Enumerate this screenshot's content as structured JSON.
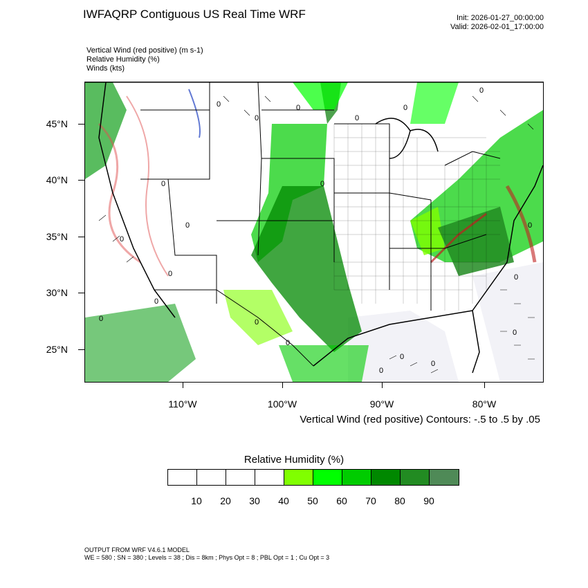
{
  "header": {
    "title": "IWFAQRP Contiguous US Real Time WRF",
    "init": "Init: 2026-01-27_00:00:00",
    "valid": "Valid: 2026-02-01_17:00:00"
  },
  "variables": [
    "Vertical Wind (red positive)   (m s-1)",
    "Relative Humidity   (%)",
    "Winds   (kts)"
  ],
  "axes": {
    "lat_labels": [
      "45°N",
      "40°N",
      "35°N",
      "30°N",
      "25°N"
    ],
    "lon_labels": [
      "110°W",
      "100°W",
      "90°W",
      "80°W"
    ]
  },
  "contour_note": "Vertical Wind (red positive) Contours: -.5 to .5 by .05",
  "legend": {
    "title": "Relative Humidity  (%)",
    "colors": [
      "#ffffff",
      "#ffffff",
      "#ffffff",
      "#ffffff",
      "#80ff00",
      "#00ff00",
      "#00cc00",
      "#008800",
      "#228b22",
      "#4f8a57"
    ],
    "labels": [
      "10",
      "20",
      "30",
      "40",
      "50",
      "60",
      "70",
      "80",
      "90"
    ]
  },
  "footer": {
    "line1": "OUTPUT FROM WRF V4.6.1 MODEL",
    "line2": "WE = 580 ; SN = 380 ; Levels = 38 ; Dis = 8km ; Phys Opt = 8 ; PBL Opt = 1 ; Cu Opt = 3"
  }
}
